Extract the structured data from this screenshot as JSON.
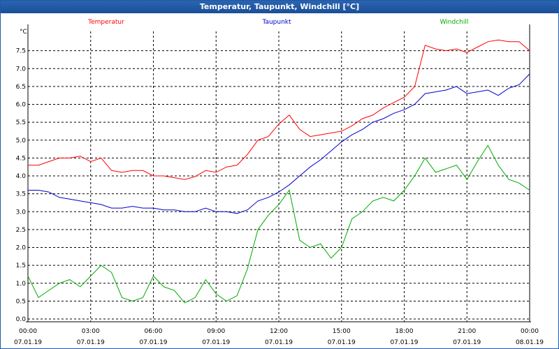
{
  "window": {
    "title": "Temperatur, Taupunkt, Windchill [°C]"
  },
  "chart_data": {
    "type": "line",
    "title": "Temperatur, Taupunkt, Windchill [°C]",
    "ylabel": "°C",
    "ylim": [
      0.0,
      8.0
    ],
    "yticks": [
      "0.0",
      "0.5",
      "1.0",
      "1.5",
      "2.0",
      "2.5",
      "3.0",
      "3.5",
      "4.0",
      "4.5",
      "5.0",
      "5.5",
      "6.0",
      "6.5",
      "7.0",
      "7.5"
    ],
    "x_range_hours": [
      0,
      24
    ],
    "x_ticks": [
      {
        "time": "00:00",
        "date": "07.01.19"
      },
      {
        "time": "03:00",
        "date": "07.01.19"
      },
      {
        "time": "06:00",
        "date": "07.01.19"
      },
      {
        "time": "09:00",
        "date": "07.01.19"
      },
      {
        "time": "12:00",
        "date": "07.01.19"
      },
      {
        "time": "15:00",
        "date": "07.01.19"
      },
      {
        "time": "18:00",
        "date": "07.01.19"
      },
      {
        "time": "21:00",
        "date": "07.01.19"
      },
      {
        "time": "00:00",
        "date": "08.01.19"
      }
    ],
    "grid": true,
    "legend_position": "top",
    "series": [
      {
        "name": "Temperatur",
        "color": "#ff0000",
        "x": [
          0,
          0.5,
          1,
          1.5,
          2,
          2.5,
          3,
          3.5,
          4,
          4.5,
          5,
          5.5,
          6,
          6.5,
          7,
          7.5,
          8,
          8.5,
          9,
          9.5,
          10,
          10.5,
          11,
          11.5,
          12,
          12.5,
          13,
          13.5,
          14,
          14.5,
          15,
          15.5,
          16,
          16.5,
          17,
          17.5,
          18,
          18.5,
          19,
          19.5,
          20,
          20.5,
          21,
          21.5,
          22,
          22.5,
          23,
          23.5,
          24
        ],
        "values": [
          4.3,
          4.3,
          4.4,
          4.5,
          4.5,
          4.55,
          4.4,
          4.5,
          4.15,
          4.1,
          4.15,
          4.15,
          4.0,
          4.0,
          3.95,
          3.9,
          3.98,
          4.15,
          4.1,
          4.25,
          4.3,
          4.6,
          5.0,
          5.1,
          5.45,
          5.7,
          5.3,
          5.1,
          5.15,
          5.2,
          5.25,
          5.4,
          5.6,
          5.7,
          5.9,
          6.05,
          6.2,
          6.5,
          7.65,
          7.55,
          7.5,
          7.55,
          7.45,
          7.6,
          7.75,
          7.8,
          7.75,
          7.75,
          7.5
        ]
      },
      {
        "name": "Taupunkt",
        "color": "#0000cc",
        "x": [
          0,
          0.5,
          1,
          1.5,
          2,
          2.5,
          3,
          3.5,
          4,
          4.5,
          5,
          5.5,
          6,
          6.5,
          7,
          7.5,
          8,
          8.5,
          9,
          9.5,
          10,
          10.5,
          11,
          11.5,
          12,
          12.5,
          13,
          13.5,
          14,
          14.5,
          15,
          15.5,
          16,
          16.5,
          17,
          17.5,
          18,
          18.5,
          19,
          19.5,
          20,
          20.5,
          21,
          21.5,
          22,
          22.5,
          23,
          23.5,
          24
        ],
        "values": [
          3.6,
          3.6,
          3.55,
          3.4,
          3.35,
          3.3,
          3.25,
          3.2,
          3.1,
          3.1,
          3.15,
          3.1,
          3.1,
          3.05,
          3.05,
          3.0,
          3.0,
          3.1,
          3.0,
          3.0,
          2.95,
          3.05,
          3.3,
          3.4,
          3.55,
          3.75,
          4.0,
          4.25,
          4.45,
          4.7,
          4.95,
          5.15,
          5.3,
          5.5,
          5.6,
          5.75,
          5.85,
          6.0,
          6.3,
          6.35,
          6.4,
          6.5,
          6.3,
          6.35,
          6.4,
          6.25,
          6.45,
          6.55,
          6.85
        ]
      },
      {
        "name": "Windchill",
        "color": "#00aa00",
        "x": [
          0,
          0.5,
          1,
          1.5,
          2,
          2.5,
          3,
          3.5,
          4,
          4.5,
          5,
          5.5,
          6,
          6.5,
          7,
          7.5,
          8,
          8.5,
          9,
          9.5,
          10,
          10.5,
          11,
          11.5,
          12,
          12.5,
          13,
          13.5,
          14,
          14.5,
          15,
          15.5,
          16,
          16.5,
          17,
          17.5,
          18,
          18.5,
          19,
          19.5,
          20,
          20.5,
          21,
          21.5,
          22,
          22.5,
          23,
          23.5,
          24
        ],
        "values": [
          1.2,
          0.6,
          0.8,
          1.0,
          1.1,
          0.9,
          1.2,
          1.5,
          1.3,
          0.6,
          0.5,
          0.6,
          1.2,
          0.9,
          0.8,
          0.45,
          0.6,
          1.1,
          0.7,
          0.5,
          0.65,
          1.4,
          2.5,
          2.9,
          3.2,
          3.6,
          2.2,
          2.0,
          2.1,
          1.7,
          2.0,
          2.8,
          3.0,
          3.3,
          3.4,
          3.3,
          3.6,
          4.0,
          4.5,
          4.1,
          4.2,
          4.3,
          3.9,
          4.4,
          4.85,
          4.3,
          3.9,
          3.8,
          3.6
        ]
      }
    ]
  }
}
